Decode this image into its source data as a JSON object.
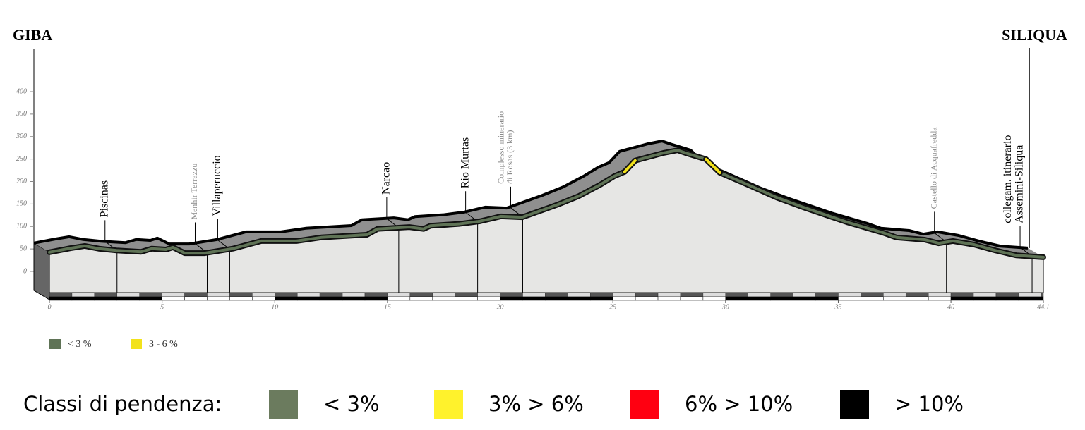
{
  "chart_data": {
    "type": "line",
    "start_label": "GIBA",
    "end_label": "SILIQUA",
    "x": [
      0,
      0.94,
      1.57,
      2.19,
      2.98,
      4.07,
      4.54,
      5.17,
      5.48,
      6.01,
      6.89,
      8.14,
      9.4,
      10.96,
      12.06,
      14.09,
      14.56,
      15.97,
      16.6,
      16.91,
      18.16,
      19.1,
      20.04,
      20.98,
      22.55,
      23.49,
      24.43,
      25.05,
      25.52,
      25.99,
      27.25,
      27.87,
      28.34,
      29.13,
      29.75,
      31.0,
      32.26,
      33.51,
      34.45,
      35.39,
      36.96,
      37.58,
      38.83,
      39.46,
      40.09,
      41.03,
      41.97,
      42.91,
      44.1
    ],
    "series": [
      {
        "name": "< 3 %",
        "color": "#5f7356",
        "values": [
          63,
          72,
          77,
          71,
          67,
          64,
          71,
          69,
          74,
          61,
          61,
          71,
          88,
          88,
          96,
          102,
          115,
          119,
          115,
          122,
          126,
          132,
          143,
          141,
          169,
          188,
          213,
          232,
          242,
          267,
          284,
          290,
          282,
          270,
          240,
          213,
          185,
          162,
          146,
          130,
          107,
          96,
          91,
          83,
          88,
          80,
          67,
          56,
          52
        ]
      },
      {
        "name": "3 - 6 %",
        "color": "#f2e21b",
        "values": [
          null,
          null,
          null,
          null,
          null,
          null,
          null,
          null,
          null,
          null,
          null,
          null,
          null,
          null,
          null,
          null,
          null,
          null,
          null,
          null,
          null,
          null,
          null,
          null,
          null,
          null,
          null,
          null,
          242,
          267,
          null,
          null,
          null,
          270,
          240,
          null,
          null,
          null,
          null,
          null,
          null,
          null,
          null,
          null,
          null,
          null,
          null,
          null,
          null
        ]
      }
    ],
    "annotations": [
      {
        "text": [
          "Piscinas"
        ],
        "x": 3.0,
        "color": "#000000"
      },
      {
        "text": [
          "Menhir Terrazzu"
        ],
        "x": 7.0,
        "color": "#888888"
      },
      {
        "text": [
          "Villaperuccio"
        ],
        "x": 8.0,
        "color": "#000000"
      },
      {
        "text": [
          "Narcao"
        ],
        "x": 15.5,
        "color": "#000000"
      },
      {
        "text": [
          "Rio Murtas"
        ],
        "x": 19.0,
        "color": "#000000"
      },
      {
        "text": [
          "Complesso minerario",
          "di Rosas (3 km)"
        ],
        "x": 21.0,
        "color": "#888888"
      },
      {
        "text": [
          "Castello di Acquafredda"
        ],
        "x": 39.8,
        "color": "#888888"
      },
      {
        "text": [
          "collegam. itinerario",
          "Assemini-Siliqua"
        ],
        "x": 43.6,
        "color": "#000000"
      }
    ],
    "xlim": [
      0,
      44.1
    ],
    "xticks": [
      0,
      5,
      10,
      15,
      20,
      25,
      30,
      35,
      40,
      44.1
    ],
    "ylim": [
      0,
      400
    ],
    "yticks": [
      0,
      50,
      100,
      150,
      200,
      250,
      300,
      350,
      400
    ],
    "legend_title": "Classi di pendenza:",
    "classes": [
      {
        "label": "< 3%",
        "color": "#6b7b5e"
      },
      {
        "label": "3% > 6%",
        "color": "#fff22c"
      },
      {
        "label": "6% > 10%",
        "color": "#ff0011"
      },
      {
        "label": "> 10%",
        "color": "#000000"
      }
    ]
  }
}
